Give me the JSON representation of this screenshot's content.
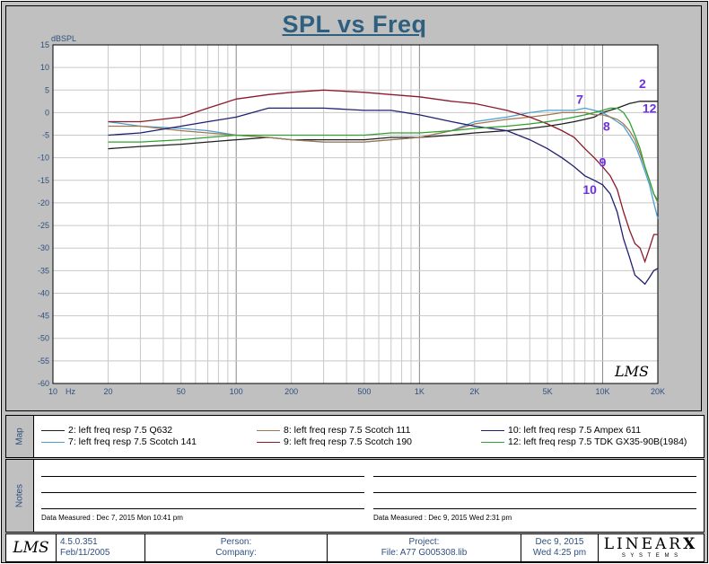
{
  "chart_data": {
    "type": "line",
    "title": "SPL vs Freq",
    "ylabel": "dBSPL",
    "xscale": "log",
    "xlim": [
      10,
      20000
    ],
    "ylim": [
      -60,
      15
    ],
    "yticks": [
      "15",
      "10",
      "5",
      "0",
      "-5",
      "-10",
      "-15",
      "-20",
      "-25",
      "-30",
      "-35",
      "-40",
      "-45",
      "-50",
      "-55",
      "-60"
    ],
    "xticks": [
      {
        "v": 10,
        "label": "10"
      },
      {
        "v": 20,
        "label": "20"
      },
      {
        "v": 50,
        "label": "50"
      },
      {
        "v": 100,
        "label": "100"
      },
      {
        "v": 200,
        "label": "200"
      },
      {
        "v": 500,
        "label": "500"
      },
      {
        "v": 1000,
        "label": "1K"
      },
      {
        "v": 2000,
        "label": "2K"
      },
      {
        "v": 5000,
        "label": "5K"
      },
      {
        "v": 10000,
        "label": "10K"
      },
      {
        "v": 20000,
        "label": "20K"
      }
    ],
    "xunit": "Hz",
    "grid": true,
    "series": [
      {
        "name": "2: left freq resp 7.5  Q632",
        "color": "#202020",
        "label": "2",
        "points": [
          [
            20,
            -8
          ],
          [
            30,
            -7.5
          ],
          [
            50,
            -7
          ],
          [
            70,
            -6.5
          ],
          [
            100,
            -6
          ],
          [
            150,
            -5.5
          ],
          [
            200,
            -6
          ],
          [
            300,
            -6
          ],
          [
            500,
            -6
          ],
          [
            700,
            -5.5
          ],
          [
            1000,
            -5.5
          ],
          [
            1500,
            -5
          ],
          [
            2000,
            -4.5
          ],
          [
            3000,
            -4
          ],
          [
            4000,
            -3.5
          ],
          [
            5000,
            -3
          ],
          [
            6000,
            -2.5
          ],
          [
            7000,
            -2
          ],
          [
            8000,
            -1.5
          ],
          [
            9000,
            -1
          ],
          [
            10000,
            0
          ],
          [
            12000,
            1
          ],
          [
            14000,
            2
          ],
          [
            16000,
            2.5
          ],
          [
            18000,
            2.5
          ],
          [
            20000,
            2.5
          ]
        ]
      },
      {
        "name": "7: left freq resp 7.5  Scotch 141",
        "color": "#4a9fd0",
        "label": "7",
        "points": [
          [
            20,
            -2
          ],
          [
            30,
            -3
          ],
          [
            50,
            -3.5
          ],
          [
            70,
            -4
          ],
          [
            100,
            -5
          ],
          [
            150,
            -5.5
          ],
          [
            200,
            -6
          ],
          [
            300,
            -6.5
          ],
          [
            500,
            -6.5
          ],
          [
            700,
            -6
          ],
          [
            1000,
            -5.5
          ],
          [
            1500,
            -4
          ],
          [
            2000,
            -2
          ],
          [
            3000,
            -1
          ],
          [
            4000,
            0
          ],
          [
            5000,
            0.5
          ],
          [
            6000,
            0.5
          ],
          [
            7000,
            0.5
          ],
          [
            8000,
            1
          ],
          [
            9000,
            0.5
          ],
          [
            10000,
            0
          ],
          [
            11000,
            -1
          ],
          [
            12000,
            -2
          ],
          [
            13000,
            -3
          ],
          [
            14000,
            -5
          ],
          [
            15000,
            -7
          ],
          [
            16000,
            -10
          ],
          [
            17000,
            -13
          ],
          [
            18000,
            -16
          ],
          [
            19000,
            -20
          ],
          [
            20000,
            -23.5
          ]
        ]
      },
      {
        "name": "8: left freq resp 7.5  Scotch 111",
        "color": "#a07850",
        "label": "8",
        "points": [
          [
            20,
            -3
          ],
          [
            30,
            -3
          ],
          [
            50,
            -4
          ],
          [
            70,
            -4.5
          ],
          [
            100,
            -5
          ],
          [
            150,
            -5.5
          ],
          [
            200,
            -6
          ],
          [
            300,
            -6.5
          ],
          [
            500,
            -6.5
          ],
          [
            700,
            -6
          ],
          [
            1000,
            -5.5
          ],
          [
            1500,
            -4
          ],
          [
            2000,
            -2.5
          ],
          [
            3000,
            -1.5
          ],
          [
            4000,
            -1
          ],
          [
            5000,
            -0.5
          ],
          [
            6000,
            0
          ],
          [
            7000,
            0
          ],
          [
            8000,
            0
          ],
          [
            9000,
            -0.5
          ],
          [
            10000,
            -0.5
          ],
          [
            11000,
            -1
          ],
          [
            12000,
            -1.5
          ],
          [
            13000,
            -2.5
          ],
          [
            14000,
            -4
          ],
          [
            15000,
            -6
          ],
          [
            16000,
            -9
          ],
          [
            17000,
            -12
          ],
          [
            18000,
            -15
          ],
          [
            19000,
            -18
          ],
          [
            20000,
            -20
          ]
        ]
      },
      {
        "name": "9: left freq resp 7.5  Scotch 190",
        "color": "#8b1a2a",
        "label": "9",
        "points": [
          [
            20,
            -2
          ],
          [
            30,
            -2
          ],
          [
            50,
            -1
          ],
          [
            70,
            1
          ],
          [
            100,
            3
          ],
          [
            150,
            4
          ],
          [
            200,
            4.5
          ],
          [
            300,
            5
          ],
          [
            500,
            4.5
          ],
          [
            700,
            4
          ],
          [
            1000,
            3.5
          ],
          [
            1500,
            2.5
          ],
          [
            2000,
            2
          ],
          [
            3000,
            0.5
          ],
          [
            4000,
            -1
          ],
          [
            5000,
            -2.5
          ],
          [
            6000,
            -4
          ],
          [
            7000,
            -5.5
          ],
          [
            8000,
            -8
          ],
          [
            9000,
            -10
          ],
          [
            10000,
            -12
          ],
          [
            11000,
            -14
          ],
          [
            12000,
            -17
          ],
          [
            13000,
            -22
          ],
          [
            14000,
            -26
          ],
          [
            15000,
            -29
          ],
          [
            16000,
            -30
          ],
          [
            17000,
            -33
          ],
          [
            18000,
            -30
          ],
          [
            19000,
            -27
          ],
          [
            20000,
            -27
          ]
        ]
      },
      {
        "name": "10: left freq resp 7.5  Ampex 611",
        "color": "#202070",
        "label": "10",
        "points": [
          [
            20,
            -5
          ],
          [
            30,
            -4.5
          ],
          [
            50,
            -3
          ],
          [
            70,
            -2
          ],
          [
            100,
            -1
          ],
          [
            150,
            1
          ],
          [
            200,
            1
          ],
          [
            300,
            1
          ],
          [
            500,
            0.5
          ],
          [
            700,
            0.5
          ],
          [
            1000,
            -0.5
          ],
          [
            1500,
            -2
          ],
          [
            2000,
            -3
          ],
          [
            3000,
            -4
          ],
          [
            4000,
            -6
          ],
          [
            5000,
            -8
          ],
          [
            6000,
            -10
          ],
          [
            7000,
            -12
          ],
          [
            8000,
            -14
          ],
          [
            9000,
            -15
          ],
          [
            10000,
            -16
          ],
          [
            11000,
            -18
          ],
          [
            12000,
            -22
          ],
          [
            13000,
            -28
          ],
          [
            14000,
            -32
          ],
          [
            15000,
            -36
          ],
          [
            16000,
            -37
          ],
          [
            17000,
            -38
          ],
          [
            18000,
            -36.5
          ],
          [
            19000,
            -35
          ],
          [
            20000,
            -34.5
          ]
        ]
      },
      {
        "name": "12: left freq resp 7.5  TDK GX35-90B(1984)",
        "color": "#30a030",
        "label": "12",
        "points": [
          [
            20,
            -6.5
          ],
          [
            30,
            -6.5
          ],
          [
            50,
            -6
          ],
          [
            70,
            -5.5
          ],
          [
            100,
            -5
          ],
          [
            150,
            -5
          ],
          [
            200,
            -5
          ],
          [
            300,
            -5
          ],
          [
            500,
            -5
          ],
          [
            700,
            -4.5
          ],
          [
            1000,
            -4.5
          ],
          [
            1500,
            -4
          ],
          [
            2000,
            -3.5
          ],
          [
            3000,
            -3
          ],
          [
            4000,
            -2.5
          ],
          [
            5000,
            -2
          ],
          [
            6000,
            -1.5
          ],
          [
            7000,
            -1
          ],
          [
            8000,
            -0.5
          ],
          [
            9000,
            0
          ],
          [
            10000,
            0.5
          ],
          [
            11000,
            1
          ],
          [
            12000,
            1
          ],
          [
            13000,
            0
          ],
          [
            14000,
            -2
          ],
          [
            15000,
            -5
          ],
          [
            16000,
            -8
          ],
          [
            17000,
            -12
          ],
          [
            18000,
            -15
          ],
          [
            19000,
            -18
          ],
          [
            20000,
            -19.5
          ]
        ]
      }
    ]
  },
  "map_label": "Map",
  "notes_label": "Notes",
  "data_measured": [
    "Data Measured : Dec 7, 2015  Mon 10:41 pm",
    "Data Measured : Dec 9, 2015  Wed  2:31 pm"
  ],
  "footer": {
    "version": "4.5.0.351",
    "date": "Feb/11/2005",
    "person": "Person:",
    "company": "Company:",
    "project": "Project:",
    "file": "File: A77 G005308.lib",
    "now_date": "Dec  9, 2015",
    "now_time": "Wed  4:25 pm",
    "brand_top": "LINEAR",
    "brand_x": "X",
    "brand_bottom": "S Y S T E M S"
  },
  "watermark": "LMS"
}
